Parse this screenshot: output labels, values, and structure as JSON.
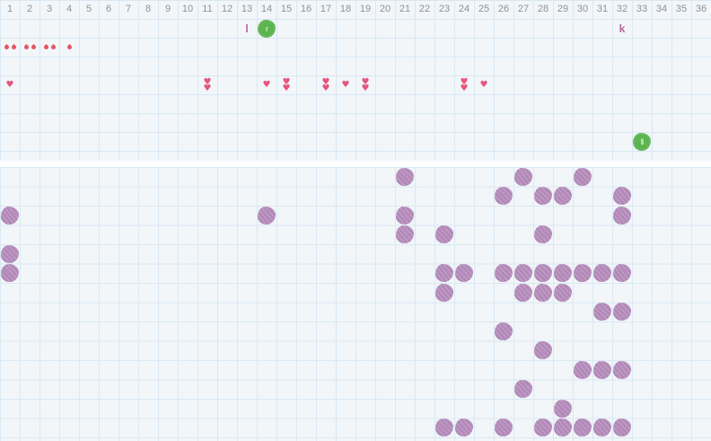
{
  "colors": {
    "cell_bg": "#f2f6f9",
    "grid_line": "#d9e8f3",
    "gap_bg": "#ffffff",
    "header_text": "#8a939b",
    "droplet": "#e25563",
    "heart": "#e4557f",
    "letter": "#b0689b",
    "green_blob": "#5cb550",
    "green_blob_mark": "#bce8ae",
    "purple_blob": "#b289b8"
  },
  "grid": {
    "columns": 36,
    "column_headers": [
      "1",
      "2",
      "3",
      "4",
      "5",
      "6",
      "7",
      "8",
      "9",
      "10",
      "11",
      "12",
      "13",
      "14",
      "15",
      "16",
      "17",
      "18",
      "19",
      "20",
      "21",
      "22",
      "23",
      "24",
      "25",
      "26",
      "27",
      "28",
      "29",
      "30",
      "31",
      "32",
      "33",
      "34",
      "35",
      "36"
    ]
  },
  "top_section": {
    "rows": 9,
    "marks": [
      {
        "row": 1,
        "col": 13,
        "type": "letter",
        "text": "l"
      },
      {
        "row": 1,
        "col": 14,
        "type": "green-blob",
        "mark": "r"
      },
      {
        "row": 1,
        "col": 32,
        "type": "letter",
        "text": "k"
      },
      {
        "row": 2,
        "col": 1,
        "type": "droplets",
        "count": 2
      },
      {
        "row": 2,
        "col": 2,
        "type": "droplets",
        "count": 2
      },
      {
        "row": 2,
        "col": 3,
        "type": "droplets",
        "count": 2
      },
      {
        "row": 2,
        "col": 4,
        "type": "droplets",
        "count": 1
      },
      {
        "row": 4,
        "col": 1,
        "type": "hearts",
        "count": 1
      },
      {
        "row": 4,
        "col": 11,
        "type": "hearts",
        "count": 2
      },
      {
        "row": 4,
        "col": 14,
        "type": "hearts",
        "count": 1
      },
      {
        "row": 4,
        "col": 15,
        "type": "hearts",
        "count": 2
      },
      {
        "row": 4,
        "col": 17,
        "type": "hearts",
        "count": 2
      },
      {
        "row": 4,
        "col": 18,
        "type": "hearts",
        "count": 1
      },
      {
        "row": 4,
        "col": 19,
        "type": "hearts",
        "count": 2
      },
      {
        "row": 4,
        "col": 24,
        "type": "hearts",
        "count": 2
      },
      {
        "row": 4,
        "col": 25,
        "type": "hearts",
        "count": 1
      },
      {
        "row": 7,
        "col": 33,
        "type": "green-blob",
        "mark": "ll"
      }
    ]
  },
  "bottom_section": {
    "rows": 15,
    "blob_rows": [
      {
        "row": 1,
        "cols": [
          21,
          27,
          30
        ]
      },
      {
        "row": 2,
        "cols": [
          26,
          28,
          29,
          32
        ]
      },
      {
        "row": 3,
        "cols": [
          1,
          14,
          21,
          32
        ]
      },
      {
        "row": 4,
        "cols": [
          21,
          23,
          28
        ]
      },
      {
        "row": 5,
        "cols": [
          1
        ]
      },
      {
        "row": 6,
        "cols": [
          1,
          23,
          24,
          26,
          27,
          28,
          29,
          30,
          31,
          32
        ]
      },
      {
        "row": 7,
        "cols": [
          23,
          27,
          28,
          29
        ]
      },
      {
        "row": 8,
        "cols": [
          31,
          32
        ]
      },
      {
        "row": 9,
        "cols": [
          26
        ]
      },
      {
        "row": 10,
        "cols": [
          28
        ]
      },
      {
        "row": 11,
        "cols": [
          30,
          31,
          32
        ]
      },
      {
        "row": 12,
        "cols": [
          27
        ]
      },
      {
        "row": 13,
        "cols": [
          29
        ]
      },
      {
        "row": 14,
        "cols": [
          23,
          24,
          26,
          28,
          29,
          30,
          31,
          32
        ]
      }
    ]
  }
}
